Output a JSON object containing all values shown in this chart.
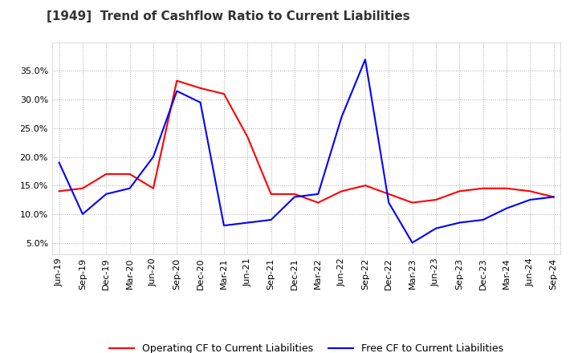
{
  "title": "[1949]  Trend of Cashflow Ratio to Current Liabilities",
  "ylim": [
    0.03,
    0.4
  ],
  "yticks": [
    0.05,
    0.1,
    0.15,
    0.2,
    0.25,
    0.3,
    0.35
  ],
  "legend_labels": [
    "Operating CF to Current Liabilities",
    "Free CF to Current Liabilities"
  ],
  "line_colors": [
    "#ff0000",
    "#0000ff"
  ],
  "x_labels": [
    "Jun-19",
    "Sep-19",
    "Dec-19",
    "Mar-20",
    "Jun-20",
    "Sep-20",
    "Dec-20",
    "Mar-21",
    "Jun-21",
    "Sep-21",
    "Dec-21",
    "Mar-22",
    "Jun-22",
    "Sep-22",
    "Dec-22",
    "Mar-23",
    "Jun-23",
    "Sep-23",
    "Dec-23",
    "Mar-24",
    "Jun-24",
    "Sep-24"
  ],
  "operating_cf": [
    0.14,
    0.145,
    0.17,
    0.17,
    0.145,
    0.333,
    0.32,
    0.31,
    0.235,
    0.135,
    0.135,
    0.12,
    0.14,
    0.15,
    0.135,
    0.12,
    0.125,
    0.14,
    0.145,
    0.145,
    0.14,
    0.13
  ],
  "free_cf": [
    0.19,
    0.1,
    0.135,
    0.145,
    0.2,
    0.315,
    0.295,
    0.08,
    0.085,
    0.09,
    0.13,
    0.135,
    0.27,
    0.37,
    0.12,
    0.05,
    0.075,
    0.085,
    0.09,
    0.11,
    0.125,
    0.13
  ],
  "background_color": "#ffffff",
  "grid_color": "#aaaaaa",
  "title_fontsize": 11,
  "tick_fontsize": 8
}
